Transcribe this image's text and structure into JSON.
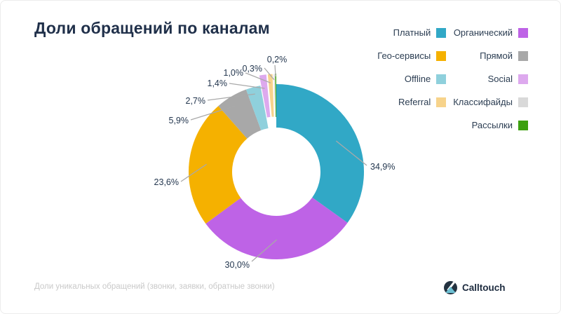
{
  "title": "Доли обращений по каналам",
  "footer": {
    "note": "Доли уникальных обращений (звонки, заявки, обратные звонки)",
    "brand": "Calltouch"
  },
  "colors": {
    "leader_line": "#a9a9a9",
    "percent_label": "#24374f",
    "logo_circle": "#233240",
    "logo_triangle": "#6ec1d4"
  },
  "chart_data": {
    "type": "pie",
    "subtype": "donut",
    "title": "Доли обращений по каналам",
    "unit": "%",
    "direction": "clockwise",
    "start_angle_deg": 0,
    "legend_position": "top-right",
    "series": [
      {
        "name": "Платный",
        "value": 34.9,
        "label": "34,9%",
        "color": "#31a8c6"
      },
      {
        "name": "Органический",
        "value": 30.0,
        "label": "30,0%",
        "color": "#be63e6"
      },
      {
        "name": "Гео-сервисы",
        "value": 23.6,
        "label": "23,6%",
        "color": "#f5b100"
      },
      {
        "name": "Прямой",
        "value": 5.9,
        "label": "5,9%",
        "color": "#a8a8a8"
      },
      {
        "name": "Offline",
        "value": 2.7,
        "label": "2,7%",
        "color": "#8fd0dc"
      },
      {
        "name": "Social",
        "value": 1.4,
        "label": "1,4%",
        "color": "#dda9ee"
      },
      {
        "name": "Referral",
        "value": 1.0,
        "label": "1,0%",
        "color": "#f7d38b"
      },
      {
        "name": "Классифайды",
        "value": 0.3,
        "label": "0,3%",
        "color": "#d9d9d9"
      },
      {
        "name": "Рассылки",
        "value": 0.2,
        "label": "0,2%",
        "color": "#3da010"
      }
    ],
    "legend_columns": [
      [
        "Платный",
        "Гео-сервисы",
        "Offline",
        "Referral"
      ],
      [
        "Органический",
        "Прямой",
        "Social",
        "Классифайды",
        "Рассылки"
      ]
    ]
  }
}
